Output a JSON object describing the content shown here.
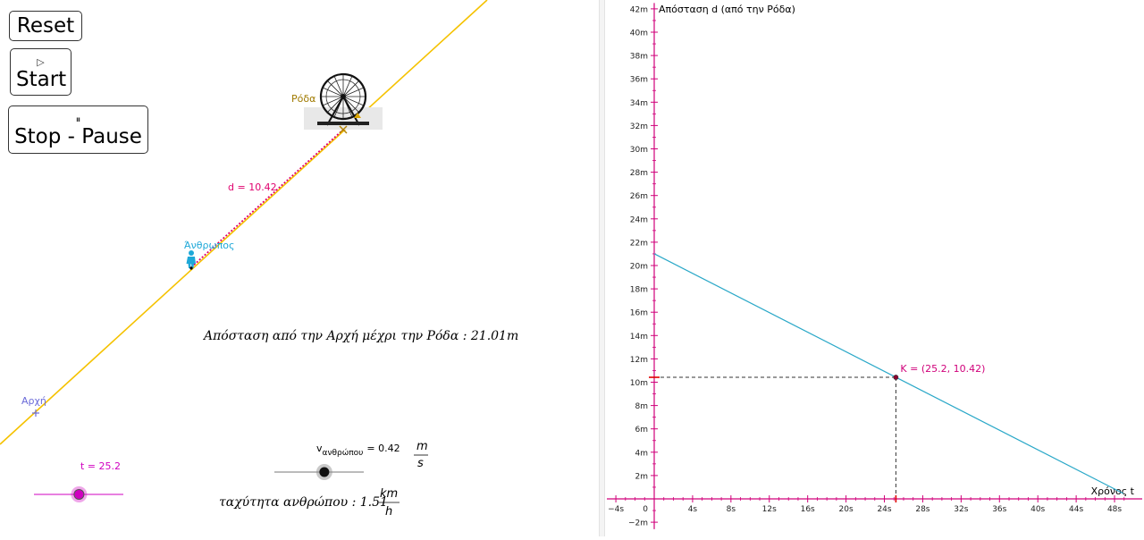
{
  "buttons": {
    "reset_label": "Reset",
    "start_symbol": "▷",
    "start_label": "Start",
    "stop_symbol": "⏸",
    "stop_label": "Stop - Pause"
  },
  "scene": {
    "line_color": "#f5c200",
    "distance_color": "#e0006e",
    "wheel_label": "Ρόδα",
    "wheel_label_color": "#a07a00",
    "person_label": "Άνθρωπος",
    "person_color": "#1ea8d8",
    "origin_label": "Αρχή",
    "origin_color": "#6a6ad8",
    "distance_label": "d = 10.42",
    "total_distance_text": "Απόσταση από την Αρχή μέχρι την Ρόδα : 21.01m"
  },
  "slider_t": {
    "label": "t = 25.2",
    "value": 25.2,
    "min": 0,
    "max": 50,
    "color": "#d000c0"
  },
  "slider_v": {
    "label_prefix": "v",
    "label_sub": "ανθρώπου",
    "label_value": "= 0.42",
    "unit_num": "m",
    "unit_den": "s",
    "value": 0.42,
    "min": 0,
    "max": 1
  },
  "speed_text": {
    "prefix": "ταχύτητα ανθρώπου :  1.51",
    "unit_num": "km",
    "unit_den": "h"
  },
  "chart_data": {
    "type": "line",
    "xlabel": "Χρόνος t",
    "ylabel": "Απόσταση d (από την Ρόδα)",
    "xlim": [
      -4.6,
      50
    ],
    "ylim": [
      -2.6,
      42.5
    ],
    "x_ticks": [
      "−4s",
      "0",
      "4s",
      "8s",
      "12s",
      "16s",
      "20s",
      "24s",
      "28s",
      "32s",
      "36s",
      "40s",
      "44s",
      "48s"
    ],
    "y_ticks": [
      "−2m",
      "2m",
      "4m",
      "6m",
      "8m",
      "10m",
      "12m",
      "14m",
      "16m",
      "18m",
      "20m",
      "22m",
      "24m",
      "26m",
      "28m",
      "30m",
      "32m",
      "34m",
      "36m",
      "38m",
      "40m",
      "42m"
    ],
    "series": [
      {
        "x": [
          0,
          48.9
        ],
        "y": [
          21.01,
          0.47
        ]
      }
    ],
    "line_color": "#2aa8c8",
    "axis_color": "#d0007a",
    "point": {
      "label": "K = (25.2, 10.42)",
      "x": 25.2,
      "y": 10.42
    },
    "grid": false
  }
}
